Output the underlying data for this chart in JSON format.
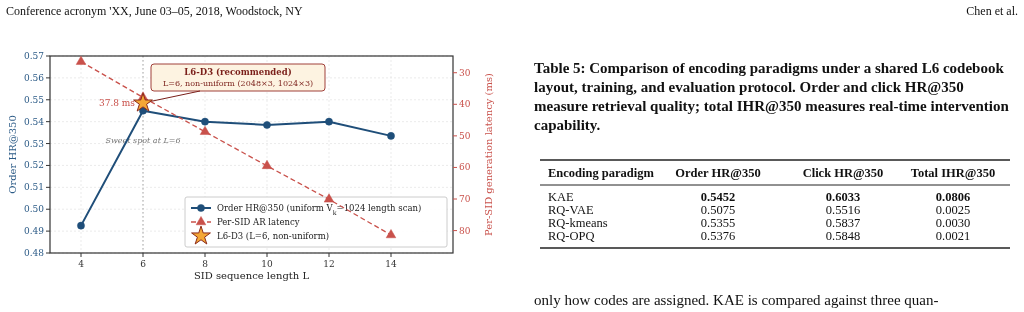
{
  "chart_data": [
    {
      "type": "line",
      "xlabel": "SID sequence length L",
      "ylabel": "Order HR@350",
      "y2label": "Per-SID generation latency (ms)",
      "xlim": [
        3,
        16
      ],
      "xticks": [
        4,
        6,
        8,
        10,
        12,
        14
      ],
      "ylim": [
        0.48,
        0.57
      ],
      "yticks": [
        0.48,
        0.49,
        {
          "value": 0.5,
          "label": "0.50"
        },
        0.51,
        0.52,
        0.53,
        0.54,
        0.55,
        0.56,
        0.57
      ],
      "y2lim": [
        87.1,
        24.7
      ],
      "y2ticks": [
        30,
        40,
        50,
        60,
        70,
        80
      ],
      "grid": true,
      "legend": "bottom right",
      "series": [
        {
          "name": "Order HR@350 (uniform V$_{k}$=1024 length scan)",
          "type": "line",
          "color": "#1f4e79",
          "marker": "circle",
          "line_style": "solid",
          "x": [
            4,
            6,
            8,
            10,
            12,
            14
          ],
          "values": [
            0.4925,
            0.545,
            0.54,
            0.5385,
            0.54,
            0.5335
          ]
        },
        {
          "name": "Per-SID AR latency",
          "type": "line",
          "axis": "y2",
          "color": "#c9514b",
          "marker": "triangle",
          "line_style": "dashed",
          "x": [
            4,
            6,
            8,
            10,
            12,
            14
          ],
          "values": [
            26.5,
            37.8,
            48.7,
            59.5,
            70.1,
            81.4
          ]
        },
        {
          "name": "L6-D3 (L=6, non-uniform)",
          "type": "scatter",
          "color": "#f4a736",
          "marker": "star",
          "x": [
            6
          ],
          "values": [
            0.5485
          ]
        }
      ],
      "ref_lines": [
        {
          "axis": "x",
          "value": 6,
          "label": "Sweet spot at L=6",
          "color": "#aaaaaa",
          "line_style": "dotted"
        }
      ],
      "annotations": [
        "L6-D3 (recommended)",
        {
          "text": "L=6, non-uniform (2048×3, 1024×3)",
          "x": 6,
          "y": 0.5485
        },
        {
          "text": "37.8 ms",
          "x": 6,
          "y": 0.5485
        }
      ]
    },
    {
      "type": "other",
      "title": "Table 5: Comparison of encoding paradigms under a shared L6 codebook layout, training, and evaluation protocol. Order and click HR@350 measure retrieval quality; total IHR@350 measures real-time intervention capability.",
      "annotations": [
        "Encoding paradigm",
        "Order HR@350",
        "Click HR@350",
        "Total IHR@350",
        "KAE",
        "0.5452",
        "0.6033",
        "0.0806",
        "RQ-VAE",
        "0.5075",
        "0.5516",
        "0.0025",
        "RQ-kmeans",
        "0.5355",
        "0.5837",
        "0.0030",
        "RQ-OPQ",
        "0.5376",
        "0.5848",
        "0.0021",
        "Conference acronym 'XX, June 03–05, 2018, Woodstock, NY",
        "Chen et al.",
        "only how codes are assigned. KAE is compared against three quan-"
      ]
    }
  ]
}
